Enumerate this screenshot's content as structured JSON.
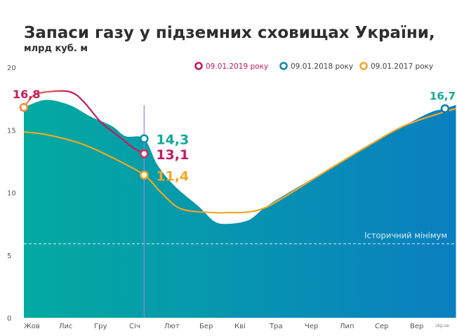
{
  "chart_data": {
    "type": "area",
    "title": "Запаси газу у підземних сховищах України,",
    "subtitle": "млрд куб. м",
    "xlabel": "",
    "ylabel": "",
    "ylim": [
      0,
      20
    ],
    "y_ticks": [
      "0",
      "5",
      "10",
      "15",
      "20"
    ],
    "y_tick_values": [
      0,
      5,
      10,
      15,
      20
    ],
    "x_tick_labels": [
      "Жов",
      "Лис",
      "Гру",
      "Січ",
      "Лют",
      "Бер",
      "Кві",
      "Тра",
      "Чер",
      "Лип",
      "Сер",
      "Вер"
    ],
    "grid": false,
    "legend_position": "top-right",
    "legend": [
      {
        "label": "09.01.2019 року",
        "color": "#c8185f"
      },
      {
        "label": "09.01.2018 року",
        "color": "#0a8fb0"
      },
      {
        "label": "09.01.2017 року",
        "color": "#f5a623"
      }
    ],
    "series": [
      {
        "name": "09.01.2018 року",
        "type": "area",
        "color_start": "#03aaa0",
        "color_end": "#0a7fc0",
        "points": [
          [
            "10-01",
            16.8
          ],
          [
            "10-19",
            17.4
          ],
          [
            "11-08",
            17.0
          ],
          [
            "11-25",
            16.1
          ],
          [
            "12-13",
            15.3
          ],
          [
            "12-24",
            14.5
          ],
          [
            "01-09",
            14.3
          ],
          [
            "01-20",
            12.2
          ],
          [
            "02-04",
            10.5
          ],
          [
            "02-24",
            8.85
          ],
          [
            "03-06",
            7.7
          ],
          [
            "03-17",
            7.5
          ],
          [
            "04-04",
            7.8
          ],
          [
            "04-18",
            8.85
          ],
          [
            "05-11",
            10.25
          ],
          [
            "06-10",
            11.9
          ],
          [
            "07-09",
            13.6
          ],
          [
            "08-10",
            15.3
          ],
          [
            "09-02",
            16.4
          ],
          [
            "09-14",
            16.7
          ],
          [
            "09-23",
            17.0
          ]
        ]
      },
      {
        "name": "09.01.2017 року",
        "type": "line",
        "color": "#f5a623",
        "points": [
          [
            "10-01",
            14.85
          ],
          [
            "10-21",
            14.6
          ],
          [
            "11-18",
            13.9
          ],
          [
            "12-13",
            12.8
          ],
          [
            "01-09",
            11.4
          ],
          [
            "01-23",
            10.0
          ],
          [
            "02-09",
            8.7
          ],
          [
            "03-05",
            8.4
          ],
          [
            "03-17",
            8.4
          ],
          [
            "04-04",
            8.45
          ],
          [
            "04-19",
            8.85
          ],
          [
            "05-09",
            10.0
          ],
          [
            "06-06",
            11.65
          ],
          [
            "07-09",
            13.6
          ],
          [
            "08-10",
            15.3
          ],
          [
            "09-12",
            16.4
          ],
          [
            "09-23",
            16.7
          ]
        ]
      },
      {
        "name": "09.01.2019 року",
        "type": "line",
        "color": "#c8185f",
        "color_start": "#f08a3a",
        "points": [
          [
            "10-01",
            16.8
          ],
          [
            "10-10",
            17.8
          ],
          [
            "10-27",
            18.1
          ],
          [
            "11-10",
            18.0
          ],
          [
            "11-20",
            17.25
          ],
          [
            "12-04",
            15.6
          ],
          [
            "12-19",
            14.45
          ],
          [
            "12-30",
            13.6
          ],
          [
            "01-09",
            13.1
          ]
        ]
      }
    ],
    "annotations": [
      {
        "text": "16,8",
        "date": "10-01",
        "value": 16.8,
        "color": "#c8185f",
        "ring": "#f08a3a",
        "placement": "above"
      },
      {
        "text": "14,3",
        "date": "01-09",
        "value": 14.3,
        "color": "#14a79c",
        "ring": "#0a8fb0",
        "placement": "right"
      },
      {
        "text": "13,1",
        "date": "01-09",
        "value": 13.1,
        "color": "#c8185f",
        "ring": "#d0305a",
        "placement": "right"
      },
      {
        "text": "11,4",
        "date": "01-09",
        "value": 11.4,
        "color": "#f5a623",
        "ring": "#f5a623",
        "placement": "right"
      },
      {
        "text": "16,7",
        "date": "09-14",
        "value": 16.7,
        "color": "#14a79c",
        "ring": "#0a7fa0",
        "placement": "above"
      }
    ],
    "marker_line": {
      "date": "01-09",
      "color": "#9c7fe8"
    },
    "reference_line": {
      "label": "Історичний мінімум",
      "value": 5.9,
      "color": "#ffffff"
    },
    "source": "utg.ua"
  }
}
